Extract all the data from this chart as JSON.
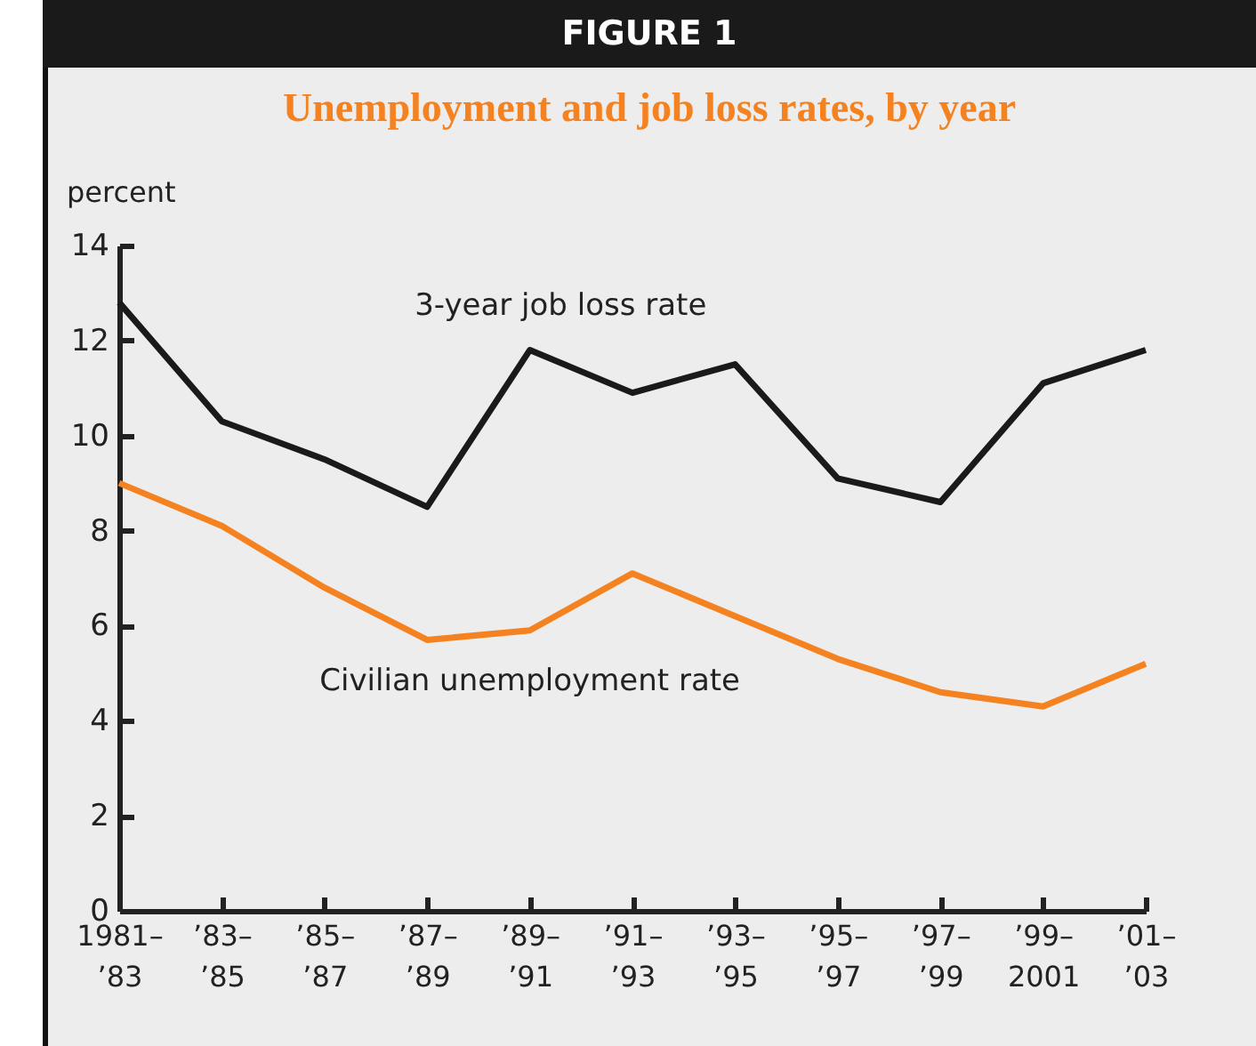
{
  "chart_data": {
    "type": "line",
    "title": "FIGURE 1",
    "subtitle": "Unemployment and job loss rates, by year",
    "ylabel": "percent",
    "categories": [
      "1981–\n’83",
      "’83–\n’85",
      "’85–\n’87",
      "’87–\n’89",
      "’89–\n’91",
      "’91–\n’93",
      "’93–\n’95",
      "’95–\n’97",
      "’97–\n’99",
      "’99–\n2001",
      "’01–\n’03"
    ],
    "series": [
      {
        "name": "3-year job loss rate",
        "color": "#1a1a1a",
        "values": [
          12.8,
          10.3,
          9.5,
          8.5,
          11.8,
          10.9,
          11.5,
          9.1,
          8.6,
          11.1,
          11.8
        ]
      },
      {
        "name": "Civilian unemployment rate",
        "color": "#f58220",
        "values": [
          9.0,
          8.1,
          6.8,
          5.7,
          5.9,
          7.1,
          6.2,
          5.3,
          4.6,
          4.3,
          5.2
        ]
      }
    ],
    "ylim": [
      0,
      14
    ],
    "yticks": [
      0,
      2,
      4,
      6,
      8,
      10,
      12,
      14
    ],
    "grid": false,
    "legend": false,
    "marker": "none",
    "line_style": "solid"
  }
}
